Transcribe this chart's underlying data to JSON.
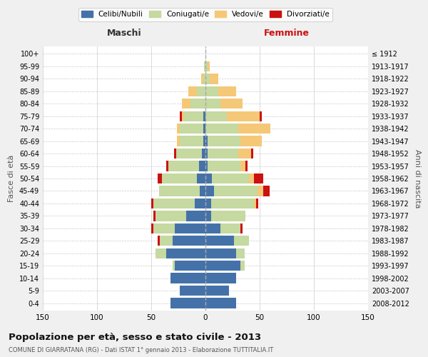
{
  "age_groups": [
    "0-4",
    "5-9",
    "10-14",
    "15-19",
    "20-24",
    "25-29",
    "30-34",
    "35-39",
    "40-44",
    "45-49",
    "50-54",
    "55-59",
    "60-64",
    "65-69",
    "70-74",
    "75-79",
    "80-84",
    "85-89",
    "90-94",
    "95-99",
    "100+"
  ],
  "birth_years": [
    "2008-2012",
    "2003-2007",
    "1998-2002",
    "1993-1997",
    "1988-1992",
    "1983-1987",
    "1978-1982",
    "1973-1977",
    "1968-1972",
    "1963-1967",
    "1958-1962",
    "1953-1957",
    "1948-1952",
    "1943-1947",
    "1938-1942",
    "1933-1937",
    "1928-1932",
    "1923-1927",
    "1918-1922",
    "1913-1917",
    "≤ 1912"
  ],
  "colors": {
    "celibe": "#4472a8",
    "coniugato": "#c5d9a0",
    "vedovo": "#f5c878",
    "divorziato": "#cc1111"
  },
  "males": {
    "celibe": [
      32,
      24,
      32,
      28,
      36,
      30,
      28,
      18,
      10,
      5,
      8,
      6,
      3,
      2,
      2,
      2,
      0,
      0,
      0,
      0,
      0
    ],
    "coniugato": [
      0,
      0,
      0,
      2,
      10,
      12,
      20,
      28,
      38,
      38,
      32,
      28,
      24,
      22,
      22,
      18,
      14,
      8,
      2,
      1,
      0
    ],
    "vedovo": [
      0,
      0,
      0,
      0,
      0,
      0,
      0,
      0,
      0,
      0,
      0,
      0,
      0,
      2,
      2,
      2,
      8,
      8,
      2,
      0,
      0
    ],
    "divorziato": [
      0,
      0,
      0,
      0,
      0,
      2,
      2,
      2,
      2,
      0,
      4,
      2,
      2,
      0,
      0,
      2,
      0,
      0,
      0,
      0,
      0
    ]
  },
  "females": {
    "nubile": [
      28,
      22,
      28,
      32,
      28,
      26,
      14,
      5,
      5,
      8,
      6,
      2,
      2,
      2,
      0,
      0,
      0,
      0,
      0,
      0,
      0
    ],
    "coniugata": [
      0,
      0,
      0,
      4,
      8,
      14,
      18,
      32,
      40,
      40,
      34,
      30,
      28,
      30,
      30,
      20,
      14,
      12,
      4,
      2,
      0
    ],
    "vedova": [
      0,
      0,
      0,
      0,
      0,
      0,
      0,
      0,
      2,
      5,
      5,
      5,
      12,
      20,
      30,
      30,
      20,
      16,
      8,
      2,
      0
    ],
    "divorziata": [
      0,
      0,
      0,
      0,
      0,
      0,
      2,
      0,
      2,
      6,
      8,
      2,
      2,
      0,
      0,
      2,
      0,
      0,
      0,
      0,
      0
    ]
  },
  "title": "Popolazione per età, sesso e stato civile - 2013",
  "subtitle": "COMUNE DI GIARRATANA (RG) - Dati ISTAT 1° gennaio 2013 - Elaborazione TUTTITALIA.IT",
  "xlabel_left": "Maschi",
  "xlabel_right": "Femmine",
  "ylabel_left": "Fasce di età",
  "ylabel_right": "Anni di nascita",
  "xlim": 150,
  "legend_labels": [
    "Celibi/Nubili",
    "Coniugati/e",
    "Vedovi/e",
    "Divorziati/e"
  ],
  "bg_color": "#f0f0f0",
  "plot_bg_color": "#ffffff",
  "grid_color": "#cccccc"
}
